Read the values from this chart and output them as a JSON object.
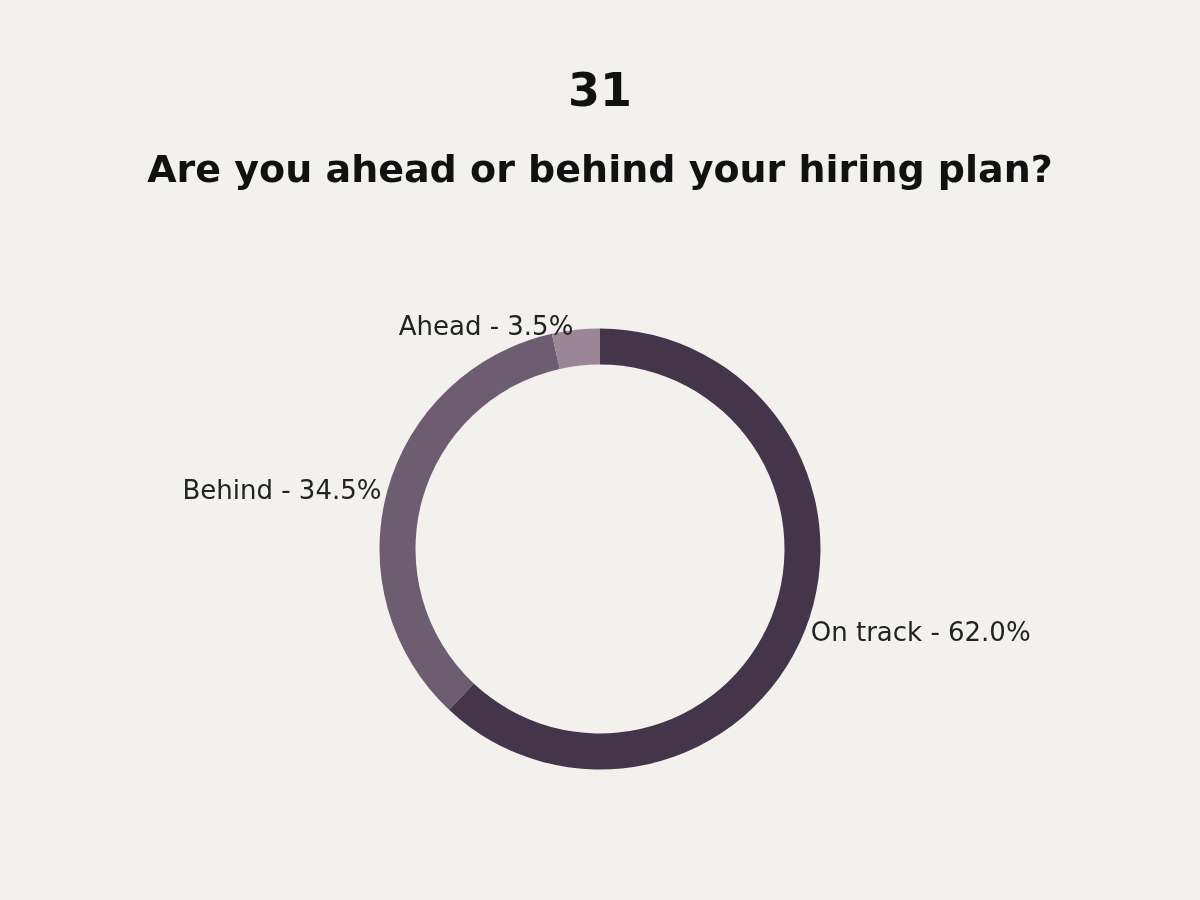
{
  "chart_data": {
    "type": "donut",
    "title": "31",
    "subtitle": "Are you ahead or behind your hiring plan?",
    "categories": [
      "On track",
      "Behind",
      "Ahead"
    ],
    "values": [
      62.0,
      34.5,
      3.5
    ],
    "colors": [
      "#45354a",
      "#6e5c70",
      "#9a8696"
    ],
    "value_labels": [
      "62.0%",
      "34.5%",
      "3.5%"
    ],
    "legend": false
  }
}
